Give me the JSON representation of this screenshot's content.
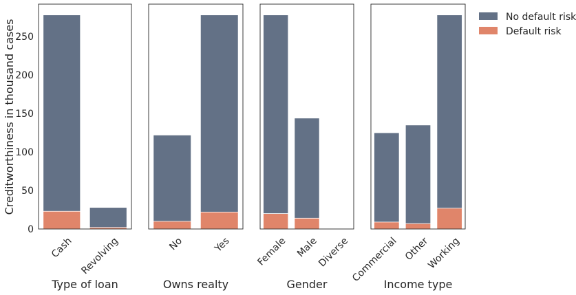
{
  "chart_data": {
    "type": "bar",
    "stacked": "overlay",
    "ylabel": "Creditworthiness in thousand cases",
    "ylim": [
      0,
      292
    ],
    "yticks": [
      0,
      50,
      100,
      150,
      200,
      250
    ],
    "grid": false,
    "legend_position": "top-right",
    "colors": {
      "no_default": "#637186",
      "default": "#e0856a"
    },
    "legend": [
      "No default risk",
      "Default risk"
    ],
    "panels": [
      {
        "xlabel": "Type of loan",
        "categories": [
          "Cash",
          "Revolving"
        ],
        "series": [
          {
            "name": "No default risk",
            "values": [
              278,
              28
            ]
          },
          {
            "name": "Default risk",
            "values": [
              23,
              2
            ]
          }
        ]
      },
      {
        "xlabel": "Owns realty",
        "categories": [
          "No",
          "Yes"
        ],
        "series": [
          {
            "name": "No default risk",
            "values": [
              122,
              278
            ]
          },
          {
            "name": "Default risk",
            "values": [
              10,
              22
            ]
          }
        ]
      },
      {
        "xlabel": "Gender",
        "categories": [
          "Female",
          "Male",
          "Diverse"
        ],
        "series": [
          {
            "name": "No default risk",
            "values": [
              278,
              144,
              0
            ]
          },
          {
            "name": "Default risk",
            "values": [
              20,
              14,
              0
            ]
          }
        ]
      },
      {
        "xlabel": "Income type",
        "categories": [
          "Commercial",
          "Other",
          "Working"
        ],
        "series": [
          {
            "name": "No default risk",
            "values": [
              125,
              135,
              278
            ]
          },
          {
            "name": "Default risk",
            "values": [
              9,
              7,
              27
            ]
          }
        ]
      }
    ]
  }
}
